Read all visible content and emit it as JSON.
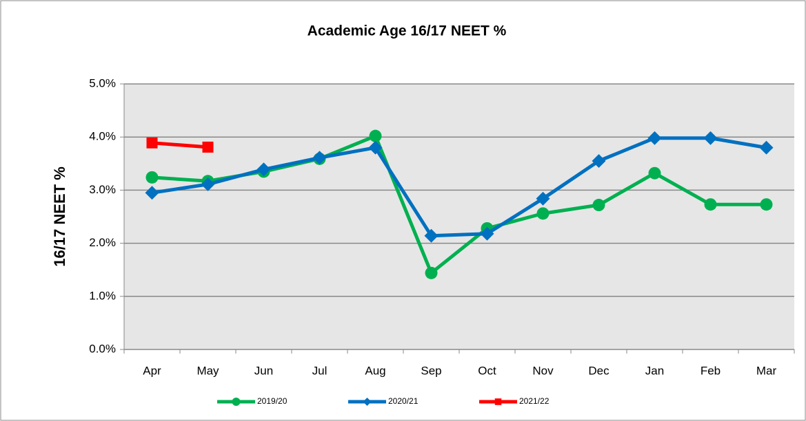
{
  "chart_data": {
    "type": "line",
    "title": "Academic Age 16/17 NEET %",
    "y_label": "16/17 NEET %",
    "categories": [
      "Apr",
      "May",
      "Jun",
      "Jul",
      "Aug",
      "Sep",
      "Oct",
      "Nov",
      "Dec",
      "Jan",
      "Feb",
      "Mar"
    ],
    "series": [
      {
        "name": "2019/20",
        "color": "#00b050",
        "marker": "circle",
        "values": [
          3.24,
          3.17,
          3.35,
          3.59,
          4.02,
          1.44,
          2.28,
          2.56,
          2.72,
          3.32,
          2.73,
          2.73
        ]
      },
      {
        "name": "2020/21",
        "color": "#0070c0",
        "marker": "diamond",
        "values": [
          2.95,
          3.11,
          3.39,
          3.61,
          3.8,
          2.14,
          2.18,
          2.84,
          3.55,
          3.98,
          3.98,
          3.8
        ]
      },
      {
        "name": "2021/22",
        "color": "#ff0000",
        "marker": "square",
        "values": [
          3.89,
          3.81,
          null,
          null,
          null,
          null,
          null,
          null,
          null,
          null,
          null,
          null
        ]
      }
    ],
    "ylim": [
      0,
      5
    ],
    "yticks": [
      {
        "value": 0,
        "label": "0.0%"
      },
      {
        "value": 1,
        "label": "1.0%"
      },
      {
        "value": 2,
        "label": "2.0%"
      },
      {
        "value": 3,
        "label": "3.0%"
      },
      {
        "value": 4,
        "label": "4.0%"
      },
      {
        "value": 5,
        "label": "5.0%"
      }
    ],
    "grid": true,
    "legend": "bottom"
  }
}
